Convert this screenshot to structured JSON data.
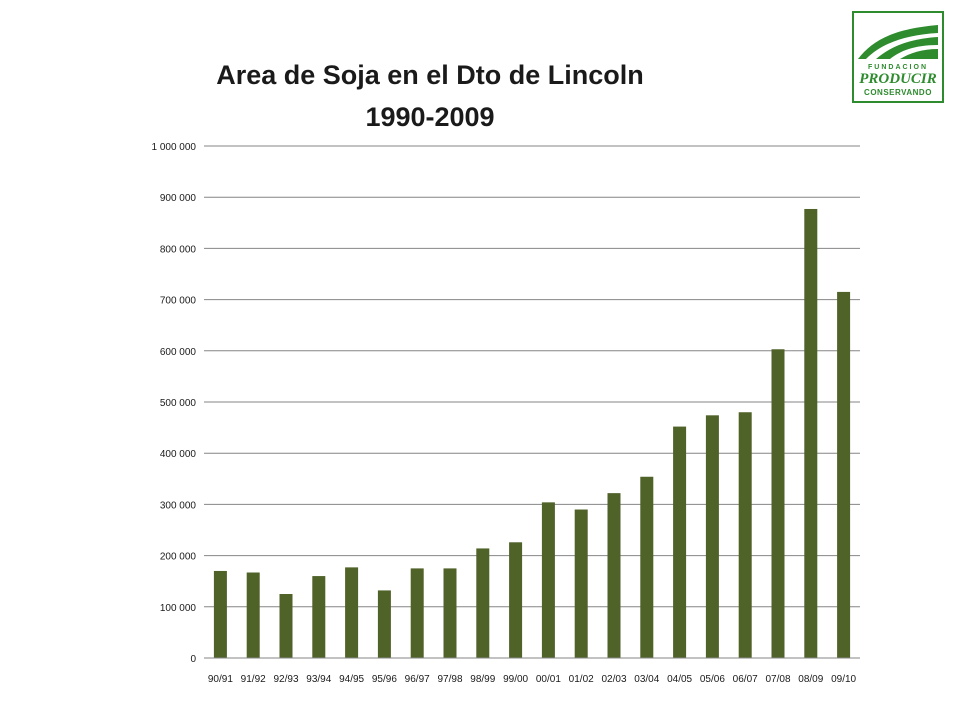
{
  "chart_data": {
    "type": "bar",
    "title": "Area de Soja en el Dto de Lincoln",
    "subtitle": "1990-2009",
    "xlabel": "",
    "ylabel": "",
    "ylim": [
      0,
      1000000
    ],
    "yticks": [
      0,
      100000,
      200000,
      300000,
      400000,
      500000,
      600000,
      700000,
      800000,
      900000,
      1000000
    ],
    "ytick_labels": [
      "0",
      "100 000",
      "200 000",
      "300 000",
      "400 000",
      "500 000",
      "600 000",
      "700 000",
      "800 000",
      "900 000",
      "1 000 000"
    ],
    "grid": true,
    "bar_color": "#4f6228",
    "categories": [
      "90/91",
      "91/92",
      "92/93",
      "93/94",
      "94/95",
      "95/96",
      "96/97",
      "97/98",
      "98/99",
      "99/00",
      "00/01",
      "01/02",
      "02/03",
      "03/04",
      "04/05",
      "05/06",
      "06/07",
      "07/08",
      "08/09",
      "09/10"
    ],
    "values": [
      170000,
      167000,
      125000,
      160000,
      177000,
      132000,
      175000,
      175000,
      214000,
      226000,
      304000,
      290000,
      322000,
      354000,
      452000,
      474000,
      480000,
      603000,
      877000,
      715000
    ]
  },
  "logo": {
    "line1": "FUNDACION",
    "line2": "PRODUCIR",
    "line3": "CONSERVANDO",
    "color": "#2e8b2e"
  }
}
